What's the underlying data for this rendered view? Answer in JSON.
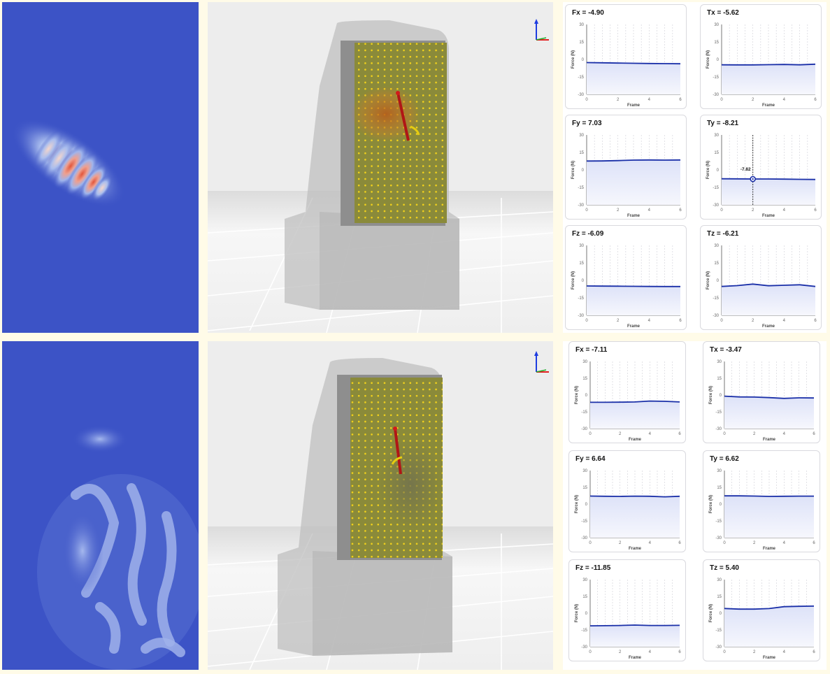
{
  "rows": [
    {
      "id": "top",
      "charts": [
        {
          "key": "fx",
          "title": "Fx = -4.90",
          "values": [
            -2.7,
            -2.9,
            -3.1,
            -3.3,
            -3.5,
            -3.6,
            -3.7
          ]
        },
        {
          "key": "tx",
          "title": "Tx = -5.62",
          "values": [
            -4.6,
            -4.7,
            -4.7,
            -4.5,
            -4.3,
            -4.6,
            -4.1
          ]
        },
        {
          "key": "fy",
          "title": "Fy = 7.03",
          "values": [
            7.6,
            7.7,
            8.0,
            8.4,
            8.5,
            8.4,
            8.5
          ]
        },
        {
          "key": "ty",
          "title": "Ty = -8.21",
          "values": [
            -7.6,
            -7.7,
            -7.82,
            -7.8,
            -7.9,
            -8.1,
            -8.2
          ],
          "tooltip": {
            "x": 2,
            "y": -7.82,
            "label": "-7.82"
          }
        },
        {
          "key": "fz",
          "title": "Fz = -6.09",
          "values": [
            -4.8,
            -4.9,
            -5.0,
            -5.1,
            -5.2,
            -5.3,
            -5.3
          ]
        },
        {
          "key": "tz",
          "title": "Tz = -6.21",
          "values": [
            -5.2,
            -4.5,
            -3.2,
            -4.6,
            -4.2,
            -3.8,
            -5.2
          ]
        }
      ]
    },
    {
      "id": "bottom",
      "charts": [
        {
          "key": "fx",
          "title": "Fx = -7.11",
          "values": [
            -6.5,
            -6.5,
            -6.4,
            -6.2,
            -5.4,
            -5.6,
            -6.2
          ]
        },
        {
          "key": "tx",
          "title": "Tx = -3.47",
          "values": [
            -1.0,
            -1.7,
            -1.8,
            -2.3,
            -3.0,
            -2.5,
            -2.6
          ]
        },
        {
          "key": "fy",
          "title": "Fy = 6.64",
          "values": [
            7.2,
            7.0,
            6.9,
            7.1,
            7.0,
            6.5,
            7.0
          ]
        },
        {
          "key": "ty",
          "title": "Ty = 6.62",
          "values": [
            7.4,
            7.4,
            7.2,
            6.9,
            7.0,
            7.1,
            7.1
          ]
        },
        {
          "key": "fz",
          "title": "Fz = -11.85",
          "values": [
            -11.3,
            -11.2,
            -11.0,
            -10.6,
            -11.0,
            -11.0,
            -10.9
          ]
        },
        {
          "key": "tz",
          "title": "Tz = 5.40",
          "values": [
            4.2,
            3.6,
            3.6,
            4.1,
            5.8,
            6.1,
            6.3
          ]
        }
      ]
    }
  ],
  "chart_axes": {
    "ylabel": "Force (N)",
    "xlabel": "Frame",
    "yticks": [
      "30",
      "15",
      "0",
      "-15",
      "-30"
    ],
    "xticks": [
      "0",
      "2",
      "4",
      "6"
    ],
    "ylim": [
      -30,
      30
    ],
    "xlim": [
      0,
      6
    ]
  },
  "colors": {
    "line": "#1a2fa8",
    "fill_top": "#dde2f8",
    "heat_base": "#3c53c6",
    "sensor_dots": "#f2d21b",
    "probe": "#b01616",
    "axis_z": "#1e3de0",
    "axis_x": "#e02020",
    "axis_y": "#20b030"
  }
}
